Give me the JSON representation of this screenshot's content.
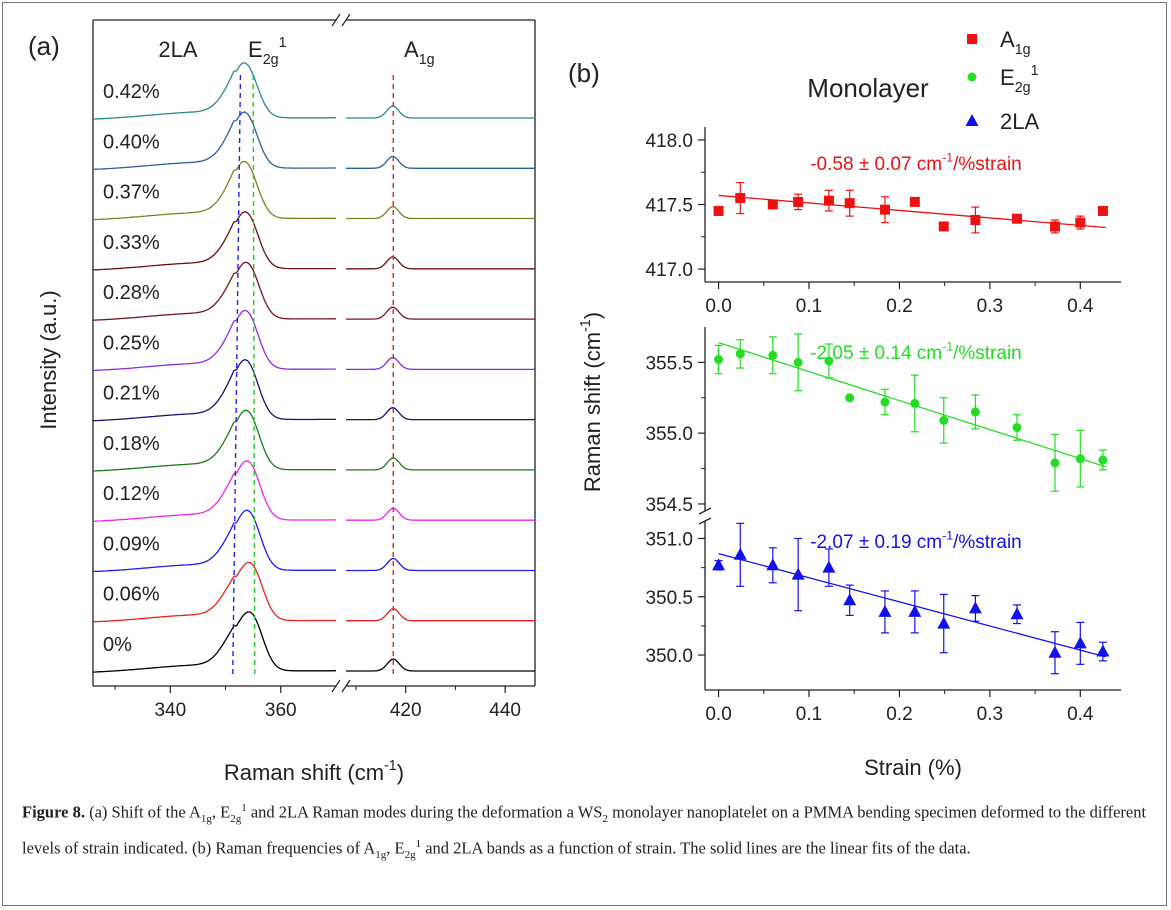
{
  "figure": {
    "panel_a_label": "(a)",
    "panel_b_label": "(b)"
  },
  "caption": {
    "label": "Figure 8.",
    "segments": [
      {
        "t": "(a) Shift of the A",
        "s": "n"
      },
      {
        "t": "1g",
        "s": "sub"
      },
      {
        "t": ", E",
        "s": "n"
      },
      {
        "t": "2g",
        "s": "sub"
      },
      {
        "t": "1",
        "s": "sup"
      },
      {
        "t": " and 2LA Raman modes during the deformation a WS",
        "s": "n"
      },
      {
        "t": "2",
        "s": "sub"
      },
      {
        "t": " monolayer nanoplatelet on a PMMA bending specimen deformed to the different levels of strain indicated. (b) Raman frequencies of A",
        "s": "n"
      },
      {
        "t": "1g",
        "s": "sub"
      },
      {
        "t": ", E",
        "s": "n"
      },
      {
        "t": "2g",
        "s": "sub"
      },
      {
        "t": "1",
        "s": "sup"
      },
      {
        "t": " and 2LA bands as a function of strain. The solid lines are the linear fits of the data.",
        "s": "n"
      }
    ]
  },
  "chart_data": [
    {
      "type": "line",
      "panel": "(a)",
      "xlabel": "Raman shift (cm-1)",
      "xlabel_parts": {
        "main": "Raman shift (cm",
        "sup": "-1",
        "close": ")"
      },
      "ylabel": "Intensity (a.u.)",
      "x_axis_break": [
        370,
        408
      ],
      "xlim_left": [
        326,
        370
      ],
      "xlim_right": [
        408,
        446
      ],
      "xticks": [
        340,
        360,
        420,
        440
      ],
      "peak_labels": [
        {
          "main": "2LA",
          "sub": "",
          "sup": ""
        },
        {
          "main": "E",
          "sub": "2g",
          "sup": "1"
        },
        {
          "main": "A",
          "sub": "1g",
          "sup": ""
        }
      ],
      "reference_lines": [
        {
          "mode": "2LA",
          "x": 352,
          "color": "#2222ee"
        },
        {
          "mode": "E2g1",
          "x": 355,
          "color": "#22cc22"
        },
        {
          "mode": "A1g",
          "x": 417.5,
          "color": "#ee2222"
        }
      ],
      "series": [
        {
          "name": "0%",
          "color": "#000000",
          "e_peak": 355.0,
          "a_peak": 417.5
        },
        {
          "name": "0.06%",
          "color": "#e8211a",
          "e_peak": 355.0,
          "a_peak": 417.5
        },
        {
          "name": "0.09%",
          "color": "#1d1df0",
          "e_peak": 354.6,
          "a_peak": 417.5
        },
        {
          "name": "0.12%",
          "color": "#ee22ee",
          "e_peak": 354.6,
          "a_peak": 417.5
        },
        {
          "name": "0.18%",
          "color": "#1a7a1a",
          "e_peak": 354.4,
          "a_peak": 417.5
        },
        {
          "name": "0.21%",
          "color": "#141474",
          "e_peak": 354.2,
          "a_peak": 417.4
        },
        {
          "name": "0.25%",
          "color": "#8a2be2",
          "e_peak": 354.2,
          "a_peak": 417.4
        },
        {
          "name": "0.28%",
          "color": "#7a1420",
          "e_peak": 354.4,
          "a_peak": 417.4
        },
        {
          "name": "0.33%",
          "color": "#6a1010",
          "e_peak": 354.2,
          "a_peak": 417.4
        },
        {
          "name": "0.37%",
          "color": "#808020",
          "e_peak": 354.0,
          "a_peak": 417.4
        },
        {
          "name": "0.40%",
          "color": "#2a5f9e",
          "e_peak": 354.0,
          "a_peak": 417.4
        },
        {
          "name": "0.42%",
          "color": "#2a8a8a",
          "e_peak": 354.0,
          "a_peak": 417.4
        }
      ]
    },
    {
      "type": "scatter",
      "panel": "(b)",
      "title": "Monolayer",
      "xlabel": "Strain (%)",
      "ylabel": "Raman shift (cm-1)",
      "ylabel_parts": {
        "main": "Raman shift (cm",
        "sup": "-1",
        "close": ")"
      },
      "xlim": [
        -0.015,
        0.445
      ],
      "xticks": [
        "0.0",
        "0.1",
        "0.2",
        "0.3",
        "0.4"
      ],
      "legend_placement": "top-right",
      "legend": [
        {
          "marker": "square",
          "color": "#ee1111",
          "main": "A",
          "sub": "1g",
          "sup": ""
        },
        {
          "marker": "circle",
          "color": "#22dd22",
          "main": "E",
          "sub": "2g",
          "sup": "1"
        },
        {
          "marker": "triangle",
          "color": "#1111ee",
          "main": "2LA",
          "sub": "",
          "sup": ""
        }
      ],
      "subplots": [
        {
          "mode": "A1g",
          "marker": "square",
          "color": "#ee1111",
          "ylim": [
            416.9,
            418.1
          ],
          "yticks": [
            "417.0",
            "417.5",
            "418.0"
          ],
          "fit_label": {
            "main": "-0.58 ± 0.07 cm",
            "sup": "-1",
            "tail": "/%strain"
          },
          "fit": {
            "slope": -0.58,
            "intercept": 417.57
          },
          "x": [
            0.0,
            0.024,
            0.06,
            0.088,
            0.122,
            0.145,
            0.184,
            0.217,
            0.249,
            0.284,
            0.33,
            0.372,
            0.4,
            0.425
          ],
          "y": [
            417.45,
            417.55,
            417.5,
            417.52,
            417.53,
            417.51,
            417.46,
            417.52,
            417.33,
            417.38,
            417.39,
            417.33,
            417.36,
            417.45
          ],
          "err": [
            0.0,
            0.12,
            0.03,
            0.06,
            0.08,
            0.1,
            0.1,
            0.0,
            0.0,
            0.1,
            0.0,
            0.05,
            0.05,
            0.0
          ]
        },
        {
          "mode": "E2g1",
          "marker": "circle",
          "color": "#22dd22",
          "ylim": [
            354.45,
            355.75
          ],
          "yticks": [
            "354.5",
            "355.0",
            "355.5"
          ],
          "fit_label": {
            "main": "-2.05 ± 0.14 cm",
            "sup": "-1",
            "tail": "/%strain"
          },
          "fit": {
            "slope": -2.05,
            "intercept": 355.64
          },
          "x": [
            0.0,
            0.024,
            0.06,
            0.088,
            0.122,
            0.145,
            0.184,
            0.217,
            0.249,
            0.284,
            0.33,
            0.372,
            0.4,
            0.425
          ],
          "y": [
            355.52,
            355.56,
            355.55,
            355.5,
            355.51,
            355.25,
            355.22,
            355.21,
            355.09,
            355.15,
            355.04,
            354.79,
            354.82,
            354.81
          ],
          "err": [
            0.1,
            0.1,
            0.13,
            0.2,
            0.12,
            0.0,
            0.09,
            0.2,
            0.16,
            0.12,
            0.09,
            0.2,
            0.2,
            0.07
          ]
        },
        {
          "mode": "2LA",
          "marker": "triangle",
          "color": "#1111ee",
          "ylim": [
            349.7,
            351.15
          ],
          "yticks": [
            "350.0",
            "350.5",
            "351.0"
          ],
          "fit_label": {
            "main": "-2.07 ± 0.19 cm",
            "sup": "-1",
            "tail": "/%strain"
          },
          "fit": {
            "slope": -2.07,
            "intercept": 350.87
          },
          "x": [
            0.0,
            0.024,
            0.06,
            0.088,
            0.122,
            0.145,
            0.184,
            0.217,
            0.249,
            0.284,
            0.33,
            0.372,
            0.4,
            0.425
          ],
          "y": [
            350.77,
            350.86,
            350.77,
            350.69,
            350.75,
            350.47,
            350.37,
            350.37,
            350.27,
            350.4,
            350.35,
            350.02,
            350.1,
            350.03
          ],
          "err": [
            0.04,
            0.27,
            0.15,
            0.31,
            0.16,
            0.13,
            0.18,
            0.18,
            0.25,
            0.11,
            0.08,
            0.18,
            0.18,
            0.08
          ]
        }
      ]
    }
  ]
}
